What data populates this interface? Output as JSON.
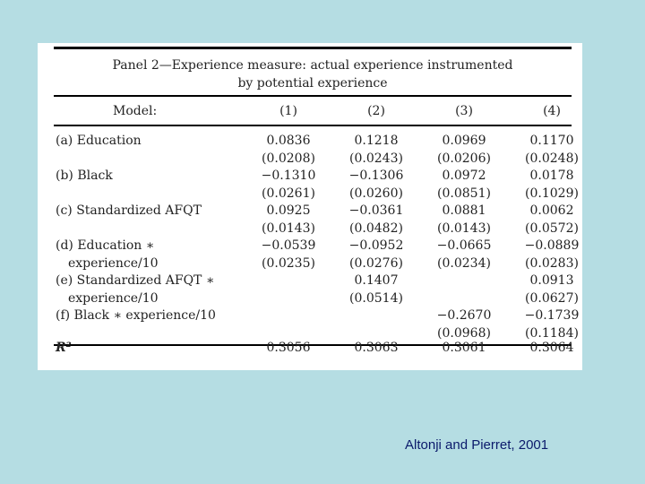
{
  "panel": {
    "title_line1": "Panel 2—Experience measure: actual experience instrumented",
    "title_line2": "by potential experience",
    "header": {
      "label": "Model:",
      "cols": [
        "(1)",
        "(2)",
        "(3)",
        "(4)"
      ]
    },
    "rows": [
      {
        "label": "(a) Education",
        "indent": false,
        "cells": [
          "0.0836",
          "0.1218",
          "0.0969",
          "0.1170"
        ]
      },
      {
        "label": "",
        "indent": false,
        "cells": [
          "(0.0208)",
          "(0.0243)",
          "(0.0206)",
          "(0.0248)"
        ]
      },
      {
        "label": "(b) Black",
        "indent": false,
        "cells": [
          "−0.1310",
          "−0.1306",
          "0.0972",
          "0.0178"
        ]
      },
      {
        "label": "",
        "indent": false,
        "cells": [
          "(0.0261)",
          "(0.0260)",
          "(0.0851)",
          "(0.1029)"
        ]
      },
      {
        "label": "(c) Standardized AFQT",
        "indent": false,
        "cells": [
          "0.0925",
          "−0.0361",
          "0.0881",
          "0.0062"
        ]
      },
      {
        "label": "",
        "indent": false,
        "cells": [
          "(0.0143)",
          "(0.0482)",
          "(0.0143)",
          "(0.0572)"
        ]
      },
      {
        "label": "(d) Education ∗",
        "indent": false,
        "cells": [
          "−0.0539",
          "−0.0952",
          "−0.0665",
          "−0.0889"
        ]
      },
      {
        "label": "experience/10",
        "indent": true,
        "cells": [
          "(0.0235)",
          "(0.0276)",
          "(0.0234)",
          "(0.0283)"
        ]
      },
      {
        "label": "(e) Standardized AFQT ∗",
        "indent": false,
        "cells": [
          "",
          "0.1407",
          "",
          "0.0913"
        ]
      },
      {
        "label": "experience/10",
        "indent": true,
        "cells": [
          "",
          "(0.0514)",
          "",
          "(0.0627)"
        ]
      },
      {
        "label": "(f) Black ∗ experience/10",
        "indent": false,
        "cells": [
          "",
          "",
          "−0.2670",
          "−0.1739"
        ]
      },
      {
        "label": "",
        "indent": false,
        "cells": [
          "",
          "",
          "(0.0968)",
          "(0.1184)"
        ]
      }
    ],
    "r2": {
      "label": "R²",
      "cells": [
        "0.3056",
        "0.3063",
        "0.3061",
        "0.3064"
      ]
    }
  },
  "footer": {
    "citation": "Altonji and Pierret, 2001"
  }
}
